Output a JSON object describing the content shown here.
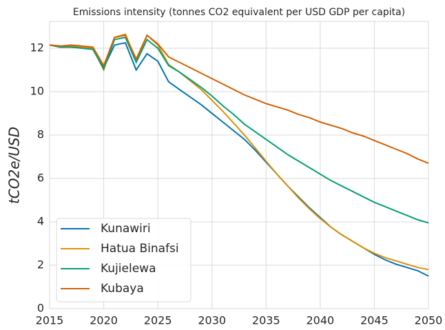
{
  "chart_data": {
    "type": "line",
    "title": "Emissions intensity (tonnes CO2 equivalent per USD GDP per capita)",
    "ylabel": "tCO2e/USD",
    "x": [
      2015,
      2016,
      2017,
      2018,
      2019,
      2020,
      2021,
      2022,
      2023,
      2024,
      2025,
      2026,
      2027,
      2028,
      2029,
      2030,
      2031,
      2032,
      2033,
      2034,
      2035,
      2036,
      2037,
      2038,
      2039,
      2040,
      2041,
      2042,
      2043,
      2044,
      2045,
      2046,
      2047,
      2048,
      2049,
      2050
    ],
    "series": [
      {
        "name": "Kunawiri",
        "color": "#0173b2",
        "values": [
          12.15,
          12.1,
          12.1,
          12.05,
          12.0,
          11.1,
          12.15,
          12.25,
          11.0,
          11.75,
          11.4,
          10.45,
          10.1,
          9.75,
          9.4,
          9.0,
          8.6,
          8.2,
          7.8,
          7.3,
          6.75,
          6.2,
          5.65,
          5.15,
          4.65,
          4.2,
          3.75,
          3.4,
          3.1,
          2.8,
          2.5,
          2.25,
          2.05,
          1.9,
          1.75,
          1.5
        ]
      },
      {
        "name": "Hatua Binafsi",
        "color": "#de8f05",
        "values": [
          12.15,
          12.05,
          12.1,
          12.05,
          12.0,
          11.0,
          12.5,
          12.65,
          11.4,
          12.6,
          12.15,
          11.25,
          10.9,
          10.5,
          10.1,
          9.6,
          9.1,
          8.55,
          8.0,
          7.4,
          6.8,
          6.2,
          5.65,
          5.1,
          4.6,
          4.15,
          3.75,
          3.4,
          3.1,
          2.8,
          2.55,
          2.35,
          2.2,
          2.05,
          1.9,
          1.8
        ]
      },
      {
        "name": "Kujielewa",
        "color": "#029e73",
        "values": [
          12.15,
          12.05,
          12.05,
          12.0,
          11.95,
          11.05,
          12.4,
          12.5,
          11.35,
          12.4,
          12.0,
          11.2,
          10.9,
          10.55,
          10.2,
          9.8,
          9.35,
          8.95,
          8.5,
          8.15,
          7.8,
          7.45,
          7.1,
          6.8,
          6.5,
          6.2,
          5.9,
          5.65,
          5.4,
          5.15,
          4.9,
          4.7,
          4.5,
          4.3,
          4.1,
          3.95
        ]
      },
      {
        "name": "Kubaya",
        "color": "#d55e00",
        "values": [
          12.15,
          12.1,
          12.15,
          12.1,
          12.05,
          11.2,
          12.5,
          12.6,
          11.5,
          12.6,
          12.2,
          11.6,
          11.35,
          11.1,
          10.85,
          10.6,
          10.35,
          10.1,
          9.85,
          9.65,
          9.45,
          9.3,
          9.15,
          8.95,
          8.8,
          8.6,
          8.45,
          8.3,
          8.1,
          7.95,
          7.75,
          7.55,
          7.35,
          7.15,
          6.9,
          6.7
        ]
      }
    ],
    "xlim": [
      2015,
      2050
    ],
    "ylim": [
      0,
      13.24
    ],
    "xticks": [
      2015,
      2020,
      2025,
      2030,
      2035,
      2040,
      2045,
      2050
    ],
    "yticks": [
      0,
      2,
      4,
      6,
      8,
      10,
      12
    ],
    "grid": true,
    "legend": "lower left"
  }
}
